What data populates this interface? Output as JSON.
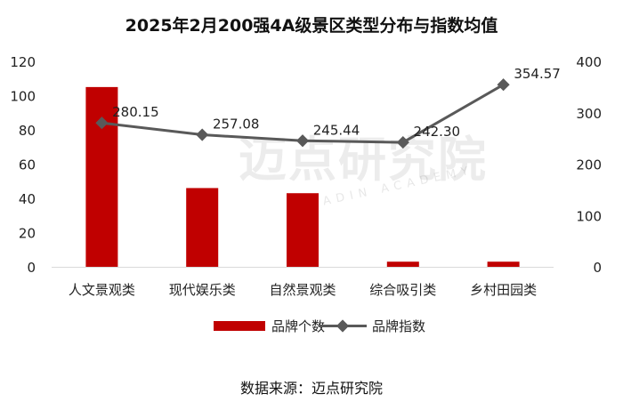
{
  "title": "2025年2月200强4A级景区类型分布与指数均值",
  "source": "数据来源：迈点研究院",
  "watermark": {
    "cn": "迈点研究院",
    "en": "MEADIN ACADEMY"
  },
  "colors": {
    "bar": "#c00000",
    "line": "#595959",
    "axis": "#d9d9d9",
    "text": "#222222"
  },
  "chart_data": {
    "type": "bar",
    "title": "2025年2月200强4A级景区类型分布与指数均值",
    "categories": [
      "人文景观类",
      "现代娱乐类",
      "自然景观类",
      "综合吸引类",
      "乡村田园类"
    ],
    "series": [
      {
        "name": "品牌个数",
        "type": "bar",
        "axis": "left",
        "values": [
          105,
          46,
          43,
          3,
          3
        ]
      },
      {
        "name": "品牌指数",
        "type": "line",
        "axis": "right",
        "values": [
          280.15,
          257.08,
          245.44,
          242.3,
          354.57
        ],
        "labels": [
          "280.15",
          "257.08",
          "245.44",
          "242.30",
          "354.57"
        ]
      }
    ],
    "y_left": {
      "min": 0,
      "max": 120,
      "ticks": [
        "0",
        "20",
        "40",
        "60",
        "80",
        "100",
        "120"
      ]
    },
    "y_right": {
      "min": 0,
      "max": 400,
      "ticks": [
        "0",
        "100",
        "200",
        "300",
        "400"
      ]
    },
    "legend": {
      "position": "bottom",
      "items": [
        "品牌个数",
        "品牌指数"
      ]
    },
    "grid": false
  }
}
